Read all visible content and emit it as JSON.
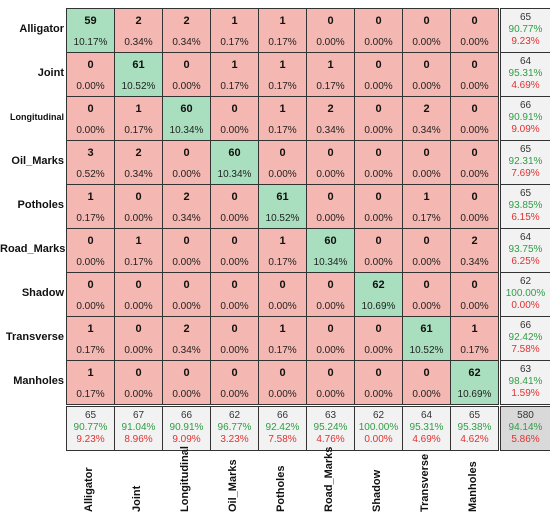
{
  "chart_data": {
    "type": "heatmap",
    "title": "",
    "xlabel": "",
    "ylabel": "",
    "row_labels": [
      "Alligator",
      "Joint",
      "Longitudinal",
      "Oil_Marks",
      "Potholes",
      "Road_Marks",
      "Shadow",
      "Transverse",
      "Manholes"
    ],
    "col_labels": [
      "Alligator",
      "Joint",
      "Longitudinal",
      "Oil_Marks",
      "Potholes",
      "Road_Marks",
      "Shadow",
      "Transverse",
      "Manholes"
    ],
    "counts": [
      [
        59,
        2,
        2,
        1,
        1,
        0,
        0,
        0,
        0
      ],
      [
        0,
        61,
        0,
        1,
        1,
        1,
        0,
        0,
        0
      ],
      [
        0,
        1,
        60,
        0,
        1,
        2,
        0,
        2,
        0
      ],
      [
        3,
        2,
        0,
        60,
        0,
        0,
        0,
        0,
        0
      ],
      [
        1,
        0,
        2,
        0,
        61,
        0,
        0,
        1,
        0
      ],
      [
        0,
        1,
        0,
        0,
        1,
        60,
        0,
        0,
        2
      ],
      [
        0,
        0,
        0,
        0,
        0,
        0,
        62,
        0,
        0
      ],
      [
        1,
        0,
        2,
        0,
        1,
        0,
        0,
        61,
        1
      ],
      [
        1,
        0,
        0,
        0,
        0,
        0,
        0,
        0,
        62
      ]
    ],
    "percents": [
      [
        "10.17%",
        "0.34%",
        "0.34%",
        "0.17%",
        "0.17%",
        "0.00%",
        "0.00%",
        "0.00%",
        "0.00%"
      ],
      [
        "0.00%",
        "10.52%",
        "0.00%",
        "0.17%",
        "0.17%",
        "0.17%",
        "0.00%",
        "0.00%",
        "0.00%"
      ],
      [
        "0.00%",
        "0.17%",
        "10.34%",
        "0.00%",
        "0.17%",
        "0.34%",
        "0.00%",
        "0.34%",
        "0.00%"
      ],
      [
        "0.52%",
        "0.34%",
        "0.00%",
        "10.34%",
        "0.00%",
        "0.00%",
        "0.00%",
        "0.00%",
        "0.00%"
      ],
      [
        "0.17%",
        "0.00%",
        "0.34%",
        "0.00%",
        "10.52%",
        "0.00%",
        "0.00%",
        "0.17%",
        "0.00%"
      ],
      [
        "0.00%",
        "0.17%",
        "0.00%",
        "0.00%",
        "0.17%",
        "10.34%",
        "0.00%",
        "0.00%",
        "0.34%"
      ],
      [
        "0.00%",
        "0.00%",
        "0.00%",
        "0.00%",
        "0.00%",
        "0.00%",
        "10.69%",
        "0.00%",
        "0.00%"
      ],
      [
        "0.17%",
        "0.00%",
        "0.34%",
        "0.00%",
        "0.17%",
        "0.00%",
        "0.00%",
        "10.52%",
        "0.17%"
      ],
      [
        "0.17%",
        "0.00%",
        "0.00%",
        "0.00%",
        "0.00%",
        "0.00%",
        "0.00%",
        "0.00%",
        "10.69%"
      ]
    ],
    "row_summary": [
      [
        "65",
        "90.77%",
        "9.23%"
      ],
      [
        "64",
        "95.31%",
        "4.69%"
      ],
      [
        "66",
        "90.91%",
        "9.09%"
      ],
      [
        "65",
        "92.31%",
        "7.69%"
      ],
      [
        "65",
        "93.85%",
        "6.15%"
      ],
      [
        "64",
        "93.75%",
        "6.25%"
      ],
      [
        "62",
        "100.00%",
        "0.00%"
      ],
      [
        "66",
        "92.42%",
        "7.58%"
      ],
      [
        "63",
        "98.41%",
        "1.59%"
      ]
    ],
    "col_summary": [
      [
        "65",
        "90.77%",
        "9.23%"
      ],
      [
        "67",
        "91.04%",
        "8.96%"
      ],
      [
        "66",
        "90.91%",
        "9.09%"
      ],
      [
        "62",
        "96.77%",
        "3.23%"
      ],
      [
        "66",
        "92.42%",
        "7.58%"
      ],
      [
        "63",
        "95.24%",
        "4.76%"
      ],
      [
        "62",
        "100.00%",
        "0.00%"
      ],
      [
        "64",
        "95.31%",
        "4.69%"
      ],
      [
        "65",
        "95.38%",
        "4.62%"
      ]
    ],
    "total": [
      "580",
      "94.14%",
      "5.86%"
    ],
    "colors": {
      "diagonal": "#a9dfbf",
      "off_diagonal": "#f5b7b1",
      "summary": "#f2f2f2",
      "total": "#d9d9d9",
      "correct_text": "#2f9e44",
      "error_text": "#e03131"
    }
  }
}
